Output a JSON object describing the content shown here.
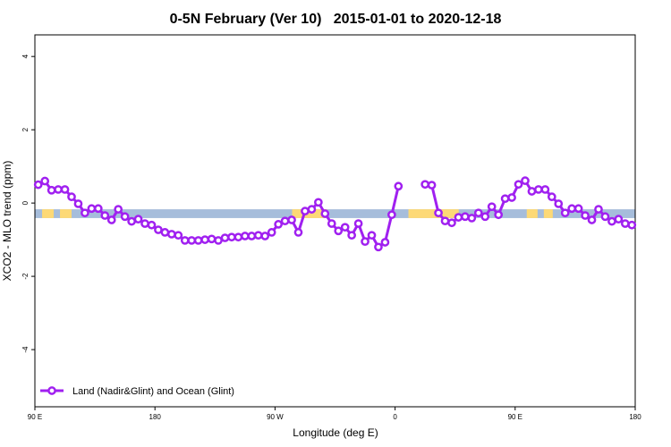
{
  "chart_data": {
    "type": "line",
    "title": "0-5N February (Ver 10)   2015-01-01 to 2020-12-18",
    "xlabel": "Longitude (deg E)",
    "ylabel": "XCO2 - MLO trend (ppm)",
    "x": [
      92.5,
      97.5,
      102.5,
      107.5,
      112.5,
      117.5,
      122.5,
      127.5,
      132.5,
      137.5,
      142.5,
      147.5,
      152.5,
      157.5,
      162.5,
      167.5,
      172.5,
      177.5,
      182.5,
      187.5,
      192.5,
      197.5,
      202.5,
      207.5,
      212.5,
      217.5,
      222.5,
      227.5,
      232.5,
      237.5,
      242.5,
      247.5,
      252.5,
      257.5,
      262.5,
      267.5,
      272.5,
      277.5,
      282.5,
      287.5,
      292.5,
      297.5,
      302.5,
      307.5,
      312.5,
      317.5,
      322.5,
      327.5,
      332.5,
      337.5,
      342.5,
      347.5,
      352.5,
      357.5,
      362.5,
      367.5,
      372.5,
      377.5,
      382.5,
      387.5,
      392.5,
      397.5,
      402.5,
      407.5,
      412.5,
      417.5,
      422.5,
      427.5,
      432.5,
      437.5,
      442.5,
      447.5,
      452.5,
      457.5,
      462.5,
      467.5,
      472.5,
      477.5,
      482.5,
      487.5,
      492.5,
      497.5,
      502.5,
      507.5,
      512.5,
      517.5,
      522.5,
      527.5,
      532.5,
      537.5
    ],
    "series": [
      {
        "name": "Land (Nadir&Glint) and Ocean (Glint)",
        "color": "#a020f0",
        "values": [
          0.5,
          0.6,
          0.35,
          0.37,
          0.37,
          0.17,
          -0.02,
          -0.27,
          -0.15,
          -0.15,
          -0.34,
          -0.46,
          -0.17,
          -0.37,
          -0.5,
          -0.44,
          -0.56,
          -0.6,
          -0.73,
          -0.8,
          -0.85,
          -0.88,
          -1.02,
          -1.02,
          -1.02,
          -1.0,
          -0.98,
          -1.02,
          -0.95,
          -0.93,
          -0.93,
          -0.9,
          -0.9,
          -0.88,
          -0.9,
          -0.8,
          -0.58,
          -0.49,
          -0.46,
          -0.8,
          -0.22,
          -0.17,
          0.02,
          -0.29,
          -0.56,
          -0.76,
          -0.66,
          -0.88,
          -0.56,
          -1.05,
          -0.88,
          -1.2,
          -1.07,
          -0.32,
          0.46,
          null,
          null,
          null,
          0.51,
          0.49,
          -0.27,
          -0.49,
          -0.54,
          -0.39,
          -0.37,
          -0.41,
          -0.27,
          -0.37,
          -0.1,
          -0.32,
          0.12,
          0.15,
          0.51,
          0.61,
          0.32,
          0.37,
          0.37,
          0.17,
          -0.02,
          -0.27,
          -0.15,
          -0.15,
          -0.34,
          -0.46,
          -0.17,
          -0.37,
          -0.5,
          -0.44,
          -0.56,
          -0.6
        ]
      }
    ],
    "band": {
      "ylim": [
        -0.41,
        -0.17
      ],
      "ocean_color": "#a6bddb",
      "land_color": "#fdd976",
      "land_spans": [
        [
          95.4,
          104.1
        ],
        [
          108.8,
          117.5
        ],
        [
          282.8,
          309
        ],
        [
          370,
          407.7
        ],
        [
          458.7,
          466.8
        ],
        [
          471.5,
          478.2
        ]
      ]
    },
    "xlim": [
      90,
      540
    ],
    "xticks": [
      {
        "value": 90,
        "label": "90 E"
      },
      {
        "value": 180,
        "label": "180"
      },
      {
        "value": 270,
        "label": "90 W"
      },
      {
        "value": 360,
        "label": "0"
      },
      {
        "value": 450,
        "label": "90 E"
      },
      {
        "value": 540,
        "label": "180"
      }
    ],
    "ylim": [
      -5.56,
      4.59
    ],
    "yticks": [
      -4,
      -2,
      0,
      2,
      4
    ],
    "legend": "bottom-left"
  }
}
